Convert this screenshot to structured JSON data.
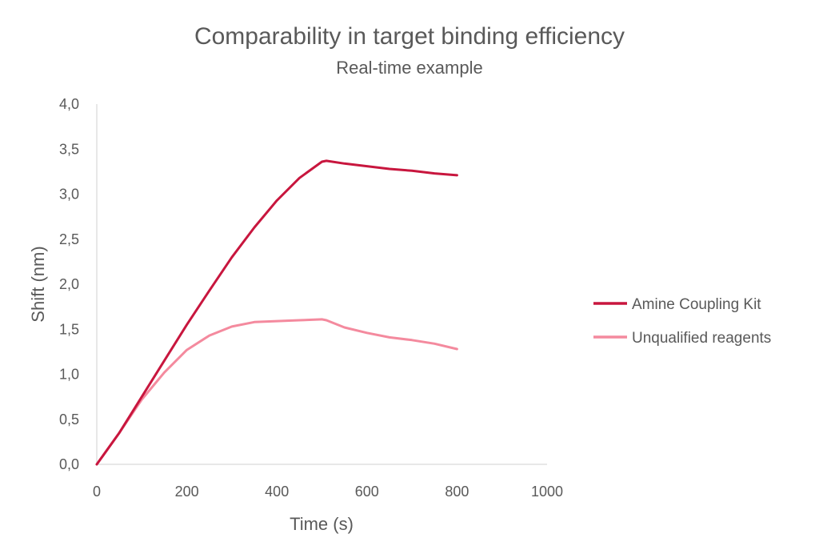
{
  "chart_data": {
    "type": "line",
    "title": "Comparability in target binding efficiency",
    "subtitle": "Real-time example",
    "xlabel": "Time (s)",
    "ylabel": "Shift (nm)",
    "xlim": [
      0,
      1000
    ],
    "ylim": [
      0,
      4
    ],
    "x_ticks": [
      "0",
      "200",
      "400",
      "600",
      "800",
      "1000"
    ],
    "y_ticks": [
      "0,0",
      "0,5",
      "1,0",
      "1,5",
      "2,0",
      "2,5",
      "3,0",
      "3,5",
      "4,0"
    ],
    "grid": false,
    "legend_position": "right",
    "series": [
      {
        "name": "Amine Coupling Kit",
        "color": "#c8163e",
        "points": [
          [
            0,
            0
          ],
          [
            50,
            0.35
          ],
          [
            100,
            0.75
          ],
          [
            150,
            1.15
          ],
          [
            200,
            1.55
          ],
          [
            250,
            1.93
          ],
          [
            300,
            2.3
          ],
          [
            350,
            2.63
          ],
          [
            400,
            2.93
          ],
          [
            450,
            3.18
          ],
          [
            500,
            3.36
          ],
          [
            510,
            3.37
          ],
          [
            550,
            3.34
          ],
          [
            600,
            3.31
          ],
          [
            650,
            3.28
          ],
          [
            700,
            3.26
          ],
          [
            750,
            3.23
          ],
          [
            800,
            3.21
          ]
        ]
      },
      {
        "name": "Unqualified reagents",
        "color": "#f48a9e",
        "points": [
          [
            0,
            0
          ],
          [
            50,
            0.35
          ],
          [
            100,
            0.72
          ],
          [
            150,
            1.02
          ],
          [
            200,
            1.27
          ],
          [
            250,
            1.43
          ],
          [
            300,
            1.53
          ],
          [
            350,
            1.58
          ],
          [
            400,
            1.59
          ],
          [
            450,
            1.6
          ],
          [
            500,
            1.61
          ],
          [
            510,
            1.6
          ],
          [
            550,
            1.52
          ],
          [
            600,
            1.46
          ],
          [
            650,
            1.41
          ],
          [
            700,
            1.38
          ],
          [
            750,
            1.34
          ],
          [
            800,
            1.28
          ]
        ]
      }
    ]
  }
}
